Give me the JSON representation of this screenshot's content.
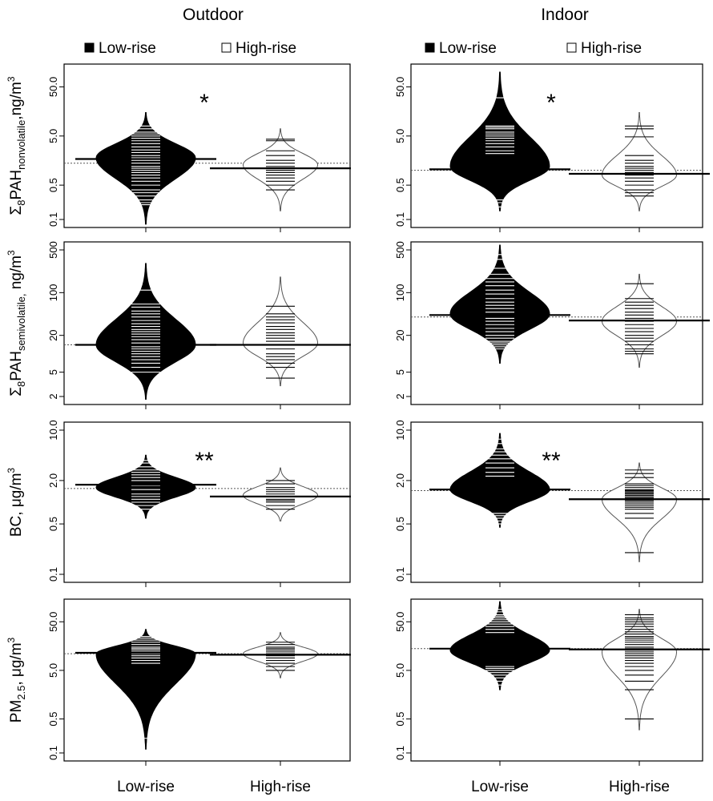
{
  "columns": [
    "Outdoor",
    "Indoor"
  ],
  "legend": {
    "low": "Low-rise",
    "high": "High-rise"
  },
  "x_categories": [
    "Low-rise",
    "High-rise"
  ],
  "ylabels": [
    {
      "pre": "Σ",
      "pre_sub": "8",
      "main": "PAH",
      "sub": "nonvolatile",
      "post": ",ng/m",
      "sup": "3"
    },
    {
      "pre": "Σ",
      "pre_sub": "8",
      "main": "PAH",
      "sub": "semivolatile,",
      "post": " ng/m",
      "sup": "3"
    },
    {
      "pre": "",
      "pre_sub": "",
      "main": "BC, μg/m",
      "sub": "",
      "post": "",
      "sup": "3"
    },
    {
      "pre": "",
      "pre_sub": "",
      "main": "PM",
      "sub": "2.5",
      "post": ", μg/m",
      "sup": "3"
    }
  ],
  "colors": {
    "low_fill": "#000000",
    "high_fill": "#ffffff",
    "outline": "#555555",
    "frame": "#000000"
  },
  "chart_data": [
    {
      "type": "beanplot",
      "panel": "nonvolatile-outdoor",
      "scale": "log",
      "ylim": [
        0.1,
        100
      ],
      "yticks": [
        0.1,
        0.5,
        5.0,
        50.0
      ],
      "ytick_labels": [
        "0.1",
        "0.5",
        "5.0",
        "50.0"
      ],
      "annotation": "*",
      "overall_mean": 1.4,
      "series": [
        {
          "name": "Low-rise",
          "mean": 1.7,
          "min": 0.08,
          "max": 15,
          "median": 1.8,
          "width": 1.0,
          "obs": [
            0.2,
            0.22,
            0.25,
            0.3,
            0.35,
            0.4,
            0.5,
            0.6,
            0.7,
            0.8,
            0.9,
            1.0,
            1.1,
            1.2,
            1.4,
            1.6,
            1.8,
            2.0,
            2.3,
            2.6,
            3.0,
            3.5,
            4.0,
            4.5,
            5.0,
            5.5,
            6.0,
            7.0,
            8.0
          ]
        },
        {
          "name": "High-rise",
          "mean": 1.1,
          "min": 0.15,
          "max": 7,
          "median": 1.3,
          "width": 0.75,
          "obs": [
            0.4,
            0.5,
            0.6,
            0.7,
            0.8,
            0.9,
            1.0,
            1.2,
            1.4,
            1.6,
            2.0,
            2.5,
            4.0,
            4.3
          ]
        }
      ]
    },
    {
      "type": "beanplot",
      "panel": "nonvolatile-indoor",
      "scale": "log",
      "ylim": [
        0.1,
        100
      ],
      "yticks": [
        0.1,
        0.5,
        5.0,
        50.0
      ],
      "ytick_labels": [
        "0.1",
        "0.5",
        "5.0",
        "50.0"
      ],
      "annotation": "*",
      "overall_mean": 1.0,
      "series": [
        {
          "name": "Low-rise",
          "mean": 1.05,
          "min": 0.15,
          "max": 100,
          "median": 1.2,
          "width": 1.0,
          "obs": [
            0.18,
            0.22,
            0.25,
            2.2,
            2.5,
            3.0,
            3.5,
            4.0,
            4.5,
            5.0,
            5.5,
            6.0,
            7.0,
            7.5,
            8.0,
            30.0
          ]
        },
        {
          "name": "High-rise",
          "mean": 0.85,
          "min": 0.15,
          "max": 15,
          "median": 0.8,
          "width": 0.75,
          "obs": [
            0.3,
            0.35,
            0.4,
            0.5,
            0.6,
            0.7,
            0.8,
            0.9,
            1.0,
            1.1,
            1.2,
            1.4,
            1.6,
            2.0,
            4.8,
            7.0,
            8.0
          ]
        }
      ]
    },
    {
      "type": "beanplot",
      "panel": "semivolatile-outdoor",
      "scale": "log",
      "ylim": [
        2,
        500
      ],
      "yticks": [
        2,
        5,
        20,
        100,
        500
      ],
      "ytick_labels": [
        "2",
        "5",
        "20",
        "100",
        "500"
      ],
      "annotation": "",
      "overall_mean": 14,
      "series": [
        {
          "name": "Low-rise",
          "mean": 14,
          "min": 1.8,
          "max": 300,
          "median": 14,
          "width": 1.0,
          "obs": [
            5,
            6,
            7,
            8,
            9,
            10,
            11,
            12,
            13,
            15,
            17,
            19,
            21,
            23,
            25,
            28,
            31,
            35,
            40,
            45,
            50,
            58,
            65,
            110
          ]
        },
        {
          "name": "High-rise",
          "mean": 14,
          "min": 3,
          "max": 180,
          "median": 15,
          "width": 0.75,
          "obs": [
            4,
            6,
            7,
            8,
            9,
            10,
            12,
            14,
            16,
            18,
            20,
            22,
            25,
            28,
            32,
            36,
            40,
            45,
            60
          ]
        }
      ]
    },
    {
      "type": "beanplot",
      "panel": "semivolatile-indoor",
      "scale": "log",
      "ylim": [
        2,
        500
      ],
      "yticks": [
        2,
        5,
        20,
        100,
        500
      ],
      "ytick_labels": [
        "2",
        "5",
        "20",
        "100",
        "500"
      ],
      "annotation": "",
      "overall_mean": 40,
      "series": [
        {
          "name": "Low-rise",
          "mean": 43,
          "min": 7,
          "max": 600,
          "median": 45,
          "width": 1.0,
          "obs": [
            12,
            13,
            14,
            15,
            16,
            18,
            20,
            23,
            26,
            30,
            34,
            38,
            43,
            48,
            55,
            62,
            70,
            80,
            95,
            110,
            130,
            150,
            170,
            200,
            250,
            350,
            420
          ]
        },
        {
          "name": "High-rise",
          "mean": 35,
          "min": 6,
          "max": 200,
          "median": 34,
          "width": 0.75,
          "obs": [
            10,
            11,
            12,
            14,
            16,
            18,
            20,
            23,
            26,
            30,
            34,
            38,
            43,
            48,
            55,
            62,
            70,
            80,
            140
          ]
        }
      ]
    },
    {
      "type": "beanplot",
      "panel": "bc-outdoor",
      "scale": "log",
      "ylim": [
        0.1,
        10
      ],
      "yticks": [
        0.1,
        0.5,
        2.0,
        10.0
      ],
      "ytick_labels": [
        "0.1",
        "0.5",
        "2.0",
        "10.0"
      ],
      "annotation": "**",
      "overall_mean": 1.55,
      "series": [
        {
          "name": "Low-rise",
          "mean": 1.75,
          "min": 0.6,
          "max": 4.5,
          "median": 1.6,
          "width": 1.0,
          "obs": [
            0.8,
            0.9,
            1.0,
            1.1,
            1.2,
            1.3,
            1.5,
            1.7,
            2.0,
            2.2,
            2.4,
            2.6,
            2.8,
            3.1,
            3.5,
            3.8
          ]
        },
        {
          "name": "High-rise",
          "mean": 1.2,
          "min": 0.55,
          "max": 3,
          "median": 1.25,
          "width": 0.75,
          "obs": [
            0.8,
            0.9,
            1.0,
            1.05,
            1.1,
            1.2,
            1.3,
            1.4,
            1.5,
            1.6,
            1.8,
            2.0
          ]
        }
      ]
    },
    {
      "type": "beanplot",
      "panel": "bc-indoor",
      "scale": "log",
      "ylim": [
        0.1,
        10
      ],
      "yticks": [
        0.1,
        0.5,
        2.0,
        10.0
      ],
      "ytick_labels": [
        "0.1",
        "0.5",
        "2.0",
        "10.0"
      ],
      "annotation": "**",
      "overall_mean": 1.45,
      "series": [
        {
          "name": "Low-rise",
          "mean": 1.5,
          "min": 0.45,
          "max": 9,
          "median": 1.5,
          "width": 1.0,
          "obs": [
            0.5,
            0.55,
            0.6,
            0.65,
            0.7,
            2.3,
            2.6,
            3.0,
            3.5,
            4.0,
            4.5,
            5.0,
            5.5,
            6.5,
            7.5
          ]
        },
        {
          "name": "High-rise",
          "mean": 1.1,
          "min": 0.15,
          "max": 3.5,
          "median": 1.1,
          "width": 0.75,
          "obs": [
            0.2,
            0.6,
            0.7,
            0.8,
            0.85,
            0.9,
            0.95,
            1.0,
            1.05,
            1.1,
            1.15,
            1.2,
            1.25,
            1.3,
            1.35,
            1.4,
            1.45,
            1.5,
            1.6,
            1.7,
            1.8,
            2.2,
            2.5,
            2.8
          ]
        }
      ]
    },
    {
      "type": "beanplot",
      "panel": "pm25-outdoor",
      "scale": "log",
      "ylim": [
        0.1,
        100
      ],
      "yticks": [
        0.1,
        0.5,
        5.0,
        50.0
      ],
      "ytick_labels": [
        "0.1",
        "0.5",
        "5.0",
        "50.0"
      ],
      "annotation": "",
      "overall_mean": 11,
      "series": [
        {
          "name": "Low-rise",
          "mean": 11.5,
          "min": 0.12,
          "max": 35,
          "median": 11,
          "width": 1.0,
          "obs": [
            0.2,
            7,
            8,
            9,
            10,
            11,
            12,
            13,
            14,
            15,
            17,
            19,
            21,
            23,
            25
          ]
        },
        {
          "name": "High-rise",
          "mean": 10.5,
          "min": 3.5,
          "max": 30,
          "median": 11,
          "width": 0.75,
          "obs": [
            5,
            6,
            7,
            8,
            9,
            10,
            11,
            12,
            13,
            14,
            15,
            17,
            19
          ]
        }
      ]
    },
    {
      "type": "beanplot",
      "panel": "pm25-indoor",
      "scale": "log",
      "ylim": [
        0.1,
        100
      ],
      "yticks": [
        0.1,
        0.5,
        5.0,
        50.0
      ],
      "ytick_labels": [
        "0.1",
        "0.5",
        "5.0",
        "50.0"
      ],
      "annotation": "",
      "overall_mean": 14,
      "series": [
        {
          "name": "Low-rise",
          "mean": 14,
          "min": 2,
          "max": 130,
          "median": 13,
          "width": 1.0,
          "obs": [
            2.5,
            3,
            3.5,
            4,
            4.5,
            5,
            5.5,
            6,
            30,
            35,
            40,
            45,
            50,
            55,
            60,
            65,
            70,
            80,
            90
          ]
        },
        {
          "name": "High-rise",
          "mean": 13.5,
          "min": 0.3,
          "max": 90,
          "median": 12,
          "width": 0.75,
          "obs": [
            0.5,
            2,
            3,
            4,
            5,
            6,
            7,
            8,
            9,
            10,
            11,
            12,
            13,
            14,
            15,
            17,
            19,
            21,
            23,
            25,
            28,
            31,
            35,
            40,
            45,
            50,
            55,
            60,
            70
          ]
        }
      ]
    }
  ]
}
